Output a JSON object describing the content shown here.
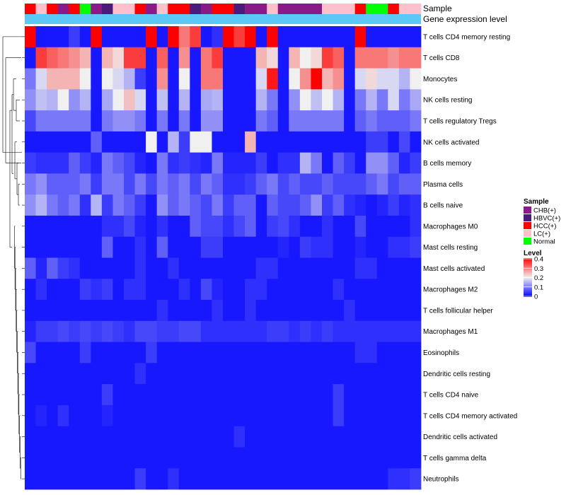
{
  "chart_data": {
    "type": "heatmap",
    "annotations": {
      "sample_label": "Sample",
      "expression_label": "Gene expression level"
    },
    "columns_sample": [
      "HCC(+)",
      "LC(+)",
      "HCC(+)",
      "CHB(+)",
      "HCC(+)",
      "Normal",
      "CHB(+)",
      "HBVC(+)",
      "LC(+)",
      "LC(+)",
      "HCC(+)",
      "CHB(+)",
      "LC(+)",
      "HCC(+)",
      "HCC(+)",
      "HBVC(+)",
      "CHB(+)",
      "HCC(+)",
      "HCC(+)",
      "HBVC(+)",
      "CHB(+)",
      "CHB(+)",
      "LC(+)",
      "CHB(+)",
      "CHB(+)",
      "CHB(+)",
      "CHB(+)",
      "LC(+)",
      "LC(+)",
      "LC(+)",
      "HCC(+)",
      "Normal",
      "Normal",
      "HCC(+)",
      "LC(+)",
      "LC(+)"
    ],
    "rows": [
      {
        "name": "T cells CD4 memory resting",
        "values": [
          0.4,
          0.02,
          0.02,
          0.02,
          0.05,
          0.02,
          0.4,
          0.02,
          0.02,
          0.02,
          0.02,
          0.4,
          0.02,
          0.4,
          0.3,
          0.35,
          0.02,
          0.04,
          0.4,
          0.35,
          0.4,
          0.02,
          0.4,
          0.02,
          0.02,
          0.02,
          0.02,
          0.02,
          0.02,
          0.02,
          0.4,
          0.02,
          0.02,
          0.02,
          0.02,
          0.02
        ]
      },
      {
        "name": "T cells CD8",
        "values": [
          0.02,
          0.35,
          0.32,
          0.3,
          0.28,
          0.25,
          0.02,
          0.25,
          0.22,
          0.35,
          0.35,
          0.02,
          0.32,
          0.02,
          0.28,
          0.02,
          0.3,
          0.35,
          0.02,
          0.02,
          0.02,
          0.25,
          0.22,
          0.02,
          0.25,
          0.2,
          0.22,
          0.35,
          0.32,
          0.02,
          0.3,
          0.3,
          0.3,
          0.28,
          0.3,
          0.3
        ]
      },
      {
        "name": "Monocytes",
        "values": [
          0.1,
          0.18,
          0.25,
          0.25,
          0.25,
          0.2,
          0.02,
          0.2,
          0.18,
          0.15,
          0.05,
          0.02,
          0.28,
          0.02,
          0.2,
          0.02,
          0.3,
          0.3,
          0.02,
          0.02,
          0.02,
          0.18,
          0.38,
          0.02,
          0.2,
          0.28,
          0.4,
          0.25,
          0.28,
          0.02,
          0.18,
          0.22,
          0.18,
          0.18,
          0.15,
          0.2
        ]
      },
      {
        "name": "NK cells resting",
        "values": [
          0.12,
          0.16,
          0.15,
          0.2,
          0.12,
          0.15,
          0.02,
          0.14,
          0.2,
          0.24,
          0.18,
          0.02,
          0.16,
          0.02,
          0.15,
          0.02,
          0.14,
          0.15,
          0.02,
          0.02,
          0.02,
          0.15,
          0.1,
          0.02,
          0.12,
          0.2,
          0.16,
          0.2,
          0.15,
          0.02,
          0.1,
          0.15,
          0.1,
          0.18,
          0.1,
          0.14
        ]
      },
      {
        "name": "T cells regulatory  Tregs",
        "values": [
          0.06,
          0.1,
          0.1,
          0.1,
          0.1,
          0.1,
          0.02,
          0.1,
          0.12,
          0.12,
          0.1,
          0.02,
          0.1,
          0.02,
          0.1,
          0.02,
          0.12,
          0.12,
          0.02,
          0.02,
          0.02,
          0.1,
          0.08,
          0.02,
          0.1,
          0.1,
          0.1,
          0.1,
          0.1,
          0.02,
          0.08,
          0.1,
          0.08,
          0.08,
          0.08,
          0.1
        ]
      },
      {
        "name": "NK cells activated",
        "values": [
          0.02,
          0.02,
          0.02,
          0.02,
          0.02,
          0.02,
          0.08,
          0.02,
          0.02,
          0.02,
          0.02,
          0.2,
          0.02,
          0.15,
          0.05,
          0.2,
          0.2,
          0.02,
          0.02,
          0.02,
          0.25,
          0.02,
          0.02,
          0.02,
          0.02,
          0.02,
          0.02,
          0.02,
          0.02,
          0.02,
          0.02,
          0.05,
          0.05,
          0.02,
          0.06,
          0.02
        ]
      },
      {
        "name": "B cells memory",
        "values": [
          0.05,
          0.04,
          0.04,
          0.04,
          0.08,
          0.05,
          0.03,
          0.1,
          0.08,
          0.06,
          0.03,
          0.02,
          0.1,
          0.04,
          0.05,
          0.04,
          0.03,
          0.1,
          0.03,
          0.03,
          0.03,
          0.05,
          0.02,
          0.04,
          0.04,
          0.15,
          0.1,
          0.02,
          0.08,
          0.05,
          0.02,
          0.12,
          0.12,
          0.08,
          0.03,
          0.05
        ]
      },
      {
        "name": "Plasma cells",
        "values": [
          0.1,
          0.12,
          0.08,
          0.08,
          0.08,
          0.1,
          0.05,
          0.1,
          0.1,
          0.06,
          0.1,
          0.06,
          0.1,
          0.08,
          0.1,
          0.06,
          0.1,
          0.08,
          0.04,
          0.04,
          0.05,
          0.08,
          0.1,
          0.06,
          0.08,
          0.06,
          0.06,
          0.08,
          0.06,
          0.06,
          0.06,
          0.08,
          0.1,
          0.06,
          0.08,
          0.08
        ]
      },
      {
        "name": "B cells naive",
        "values": [
          0.12,
          0.15,
          0.1,
          0.08,
          0.1,
          0.04,
          0.15,
          0.05,
          0.1,
          0.08,
          0.05,
          0.02,
          0.12,
          0.08,
          0.1,
          0.08,
          0.06,
          0.1,
          0.05,
          0.08,
          0.08,
          0.02,
          0.08,
          0.06,
          0.06,
          0.08,
          0.12,
          0.05,
          0.08,
          0.04,
          0.03,
          0.02,
          0.03,
          0.05,
          0.03,
          0.04
        ]
      },
      {
        "name": "Macrophages M0",
        "values": [
          0.02,
          0.02,
          0.02,
          0.02,
          0.02,
          0.02,
          0.02,
          0.04,
          0.04,
          0.06,
          0.03,
          0.02,
          0.04,
          0.02,
          0.02,
          0.08,
          0.06,
          0.06,
          0.04,
          0.06,
          0.08,
          0.02,
          0.05,
          0.06,
          0.04,
          0.02,
          0.02,
          0.04,
          0.02,
          0.02,
          0.06,
          0.02,
          0.02,
          0.02,
          0.02,
          0.04
        ]
      },
      {
        "name": "Mast cells resting",
        "values": [
          0.02,
          0.02,
          0.02,
          0.02,
          0.02,
          0.02,
          0.02,
          0.08,
          0.02,
          0.02,
          0.04,
          0.02,
          0.08,
          0.02,
          0.02,
          0.02,
          0.05,
          0.05,
          0.02,
          0.02,
          0.02,
          0.02,
          0.02,
          0.03,
          0.02,
          0.05,
          0.04,
          0.04,
          0.02,
          0.02,
          0.03,
          0.02,
          0.02,
          0.04,
          0.04,
          0.05
        ]
      },
      {
        "name": "Mast cells activated",
        "values": [
          0.08,
          0.03,
          0.08,
          0.05,
          0.04,
          0.02,
          0.02,
          0.02,
          0.02,
          0.02,
          0.04,
          0.02,
          0.02,
          0.04,
          0.02,
          0.02,
          0.02,
          0.02,
          0.02,
          0.02,
          0.02,
          0.04,
          0.04,
          0.02,
          0.02,
          0.02,
          0.02,
          0.02,
          0.02,
          0.02,
          0.04,
          0.04,
          0.02,
          0.02,
          0.02,
          0.02
        ]
      },
      {
        "name": "Macrophages M2",
        "values": [
          0.02,
          0.04,
          0.02,
          0.02,
          0.02,
          0.05,
          0.04,
          0.05,
          0.02,
          0.04,
          0.04,
          0.02,
          0.02,
          0.02,
          0.04,
          0.02,
          0.06,
          0.03,
          0.02,
          0.02,
          0.04,
          0.04,
          0.02,
          0.02,
          0.02,
          0.02,
          0.02,
          0.02,
          0.04,
          0.02,
          0.02,
          0.02,
          0.02,
          0.02,
          0.02,
          0.02
        ]
      },
      {
        "name": "T cells follicular helper",
        "values": [
          0.02,
          0.02,
          0.02,
          0.02,
          0.02,
          0.02,
          0.02,
          0.02,
          0.02,
          0.02,
          0.02,
          0.02,
          0.04,
          0.02,
          0.02,
          0.02,
          0.02,
          0.04,
          0.02,
          0.02,
          0.04,
          0.02,
          0.02,
          0.02,
          0.02,
          0.02,
          0.02,
          0.02,
          0.02,
          0.04,
          0.02,
          0.02,
          0.02,
          0.02,
          0.02,
          0.02
        ]
      },
      {
        "name": "Macrophages M1",
        "values": [
          0.03,
          0.05,
          0.05,
          0.06,
          0.05,
          0.06,
          0.05,
          0.06,
          0.05,
          0.04,
          0.06,
          0.06,
          0.05,
          0.05,
          0.06,
          0.06,
          0.04,
          0.04,
          0.04,
          0.04,
          0.04,
          0.04,
          0.05,
          0.05,
          0.04,
          0.05,
          0.04,
          0.05,
          0.04,
          0.04,
          0.04,
          0.04,
          0.04,
          0.04,
          0.04,
          0.04
        ]
      },
      {
        "name": "Eosinophils",
        "values": [
          0.06,
          0.02,
          0.02,
          0.02,
          0.02,
          0.05,
          0.02,
          0.02,
          0.02,
          0.02,
          0.02,
          0.05,
          0.02,
          0.02,
          0.02,
          0.02,
          0.02,
          0.02,
          0.02,
          0.02,
          0.02,
          0.02,
          0.02,
          0.02,
          0.02,
          0.02,
          0.02,
          0.02,
          0.02,
          0.02,
          0.04,
          0.04,
          0.02,
          0.02,
          0.02,
          0.02
        ]
      },
      {
        "name": "Dendritic cells resting",
        "values": [
          0.02,
          0.02,
          0.02,
          0.02,
          0.02,
          0.02,
          0.02,
          0.02,
          0.02,
          0.02,
          0.04,
          0.02,
          0.02,
          0.02,
          0.02,
          0.02,
          0.02,
          0.02,
          0.02,
          0.02,
          0.02,
          0.02,
          0.02,
          0.02,
          0.02,
          0.02,
          0.02,
          0.02,
          0.02,
          0.02,
          0.02,
          0.02,
          0.02,
          0.02,
          0.02,
          0.02
        ]
      },
      {
        "name": "T cells CD4 naive",
        "values": [
          0.02,
          0.02,
          0.02,
          0.02,
          0.02,
          0.02,
          0.02,
          0.05,
          0.02,
          0.02,
          0.02,
          0.02,
          0.02,
          0.02,
          0.02,
          0.02,
          0.02,
          0.02,
          0.02,
          0.02,
          0.02,
          0.02,
          0.02,
          0.02,
          0.02,
          0.02,
          0.02,
          0.02,
          0.05,
          0.02,
          0.02,
          0.02,
          0.02,
          0.02,
          0.02,
          0.02
        ]
      },
      {
        "name": "T cells CD4 memory activated",
        "values": [
          0.02,
          0.03,
          0.02,
          0.04,
          0.02,
          0.02,
          0.02,
          0.03,
          0.02,
          0.02,
          0.02,
          0.02,
          0.02,
          0.02,
          0.02,
          0.02,
          0.02,
          0.02,
          0.02,
          0.02,
          0.02,
          0.02,
          0.02,
          0.02,
          0.02,
          0.02,
          0.02,
          0.02,
          0.05,
          0.02,
          0.02,
          0.02,
          0.02,
          0.02,
          0.02,
          0.02
        ]
      },
      {
        "name": "Dendritic cells activated",
        "values": [
          0.02,
          0.02,
          0.02,
          0.02,
          0.02,
          0.02,
          0.02,
          0.02,
          0.02,
          0.02,
          0.02,
          0.02,
          0.02,
          0.02,
          0.02,
          0.02,
          0.02,
          0.02,
          0.02,
          0.04,
          0.02,
          0.02,
          0.02,
          0.02,
          0.02,
          0.02,
          0.02,
          0.02,
          0.02,
          0.02,
          0.02,
          0.02,
          0.02,
          0.02,
          0.02,
          0.02
        ]
      },
      {
        "name": "T cells gamma delta",
        "values": [
          0.02,
          0.02,
          0.02,
          0.02,
          0.02,
          0.02,
          0.02,
          0.02,
          0.02,
          0.02,
          0.02,
          0.02,
          0.02,
          0.02,
          0.02,
          0.02,
          0.02,
          0.02,
          0.02,
          0.02,
          0.02,
          0.02,
          0.02,
          0.02,
          0.02,
          0.02,
          0.02,
          0.02,
          0.02,
          0.02,
          0.02,
          0.02,
          0.02,
          0.02,
          0.02,
          0.02
        ]
      },
      {
        "name": "Neutrophils",
        "values": [
          0.02,
          0.02,
          0.02,
          0.02,
          0.02,
          0.02,
          0.02,
          0.02,
          0.02,
          0.02,
          0.05,
          0.02,
          0.02,
          0.04,
          0.02,
          0.02,
          0.02,
          0.02,
          0.02,
          0.02,
          0.02,
          0.02,
          0.02,
          0.02,
          0.02,
          0.02,
          0.02,
          0.02,
          0.02,
          0.02,
          0.02,
          0.02,
          0.02,
          0.04,
          0.04,
          0.05
        ]
      }
    ],
    "legend_sample": {
      "title": "Sample",
      "items": [
        {
          "label": "CHB(+)",
          "color": "#8B1A89"
        },
        {
          "label": "HBVC(+)",
          "color": "#4B1B7C"
        },
        {
          "label": "HCC(+)",
          "color": "#FF0000"
        },
        {
          "label": "LC(+)",
          "color": "#FFC0CB"
        },
        {
          "label": "Normal",
          "color": "#00FF00"
        }
      ]
    },
    "legend_level": {
      "title": "Level",
      "ticks": [
        "0.4",
        "0.3",
        "0.2",
        "0.1",
        "0"
      ],
      "range": [
        0,
        0.4
      ],
      "low_color": "#0000FF",
      "mid_color": "#F0F0F0",
      "high_color": "#FF0000"
    },
    "expression_bar_color": "#5BC8F5"
  }
}
